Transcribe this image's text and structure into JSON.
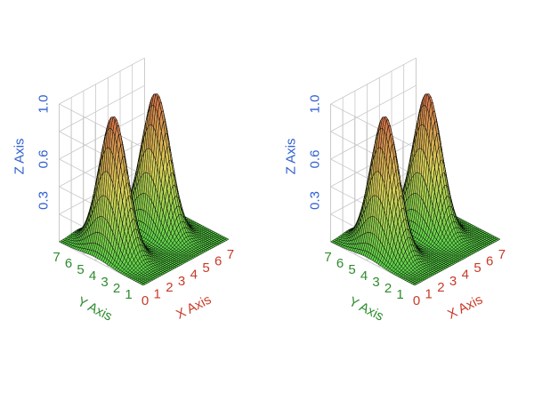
{
  "colors": {
    "background": "#ffffff",
    "grid": "#c8c8c8",
    "z_axis": "#2f5fcf",
    "y_axis": "#2e8b2e",
    "x_axis": "#c83a28",
    "mesh": "#000000",
    "surface_low": "#5bd44a",
    "surface_mid": "#d9d25a",
    "surface_high": "#d4704a"
  },
  "chart_data": [
    {
      "type": "surface3d",
      "title": "",
      "xlabel": "X Axis",
      "ylabel": "Y Axis",
      "zlabel": "Z Axis",
      "xlim": [
        0,
        7
      ],
      "ylim": [
        0,
        7
      ],
      "zlim": [
        0,
        1.0
      ],
      "x_ticks": [
        "0",
        "1",
        "2",
        "3",
        "4",
        "5",
        "6",
        "7"
      ],
      "y_ticks": [
        "1",
        "2",
        "3",
        "4",
        "5",
        "6",
        "7"
      ],
      "z_ticks": [
        "0.3",
        "0.6",
        "1.0"
      ],
      "peaks": [
        {
          "x": 1.5,
          "y": 4.0,
          "z": 0.98
        },
        {
          "x": 5.0,
          "y": 4.0,
          "z": 0.98
        }
      ],
      "grid": true
    },
    {
      "type": "surface3d",
      "title": "",
      "xlabel": "X Axis",
      "ylabel": "Y Axis",
      "zlabel": "Z Axis",
      "xlim": [
        0,
        7
      ],
      "ylim": [
        0,
        7
      ],
      "zlim": [
        0,
        1.0
      ],
      "x_ticks": [
        "0",
        "1",
        "2",
        "3",
        "4",
        "5",
        "6",
        "7"
      ],
      "y_ticks": [
        "1",
        "2",
        "3",
        "4",
        "5",
        "6",
        "7"
      ],
      "z_ticks": [
        "0.3",
        "0.6",
        "1.0"
      ],
      "peaks": [
        {
          "x": 1.5,
          "y": 4.0,
          "z": 0.98
        },
        {
          "x": 5.0,
          "y": 4.0,
          "z": 0.98
        }
      ],
      "grid": true
    }
  ]
}
